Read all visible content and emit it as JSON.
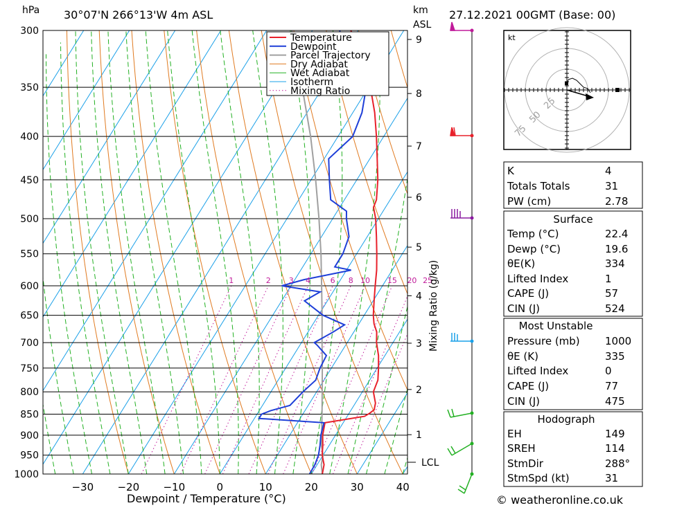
{
  "header": {
    "pressure_unit": "hPa",
    "location": "30°07'N  266°13'W  4m  ASL",
    "height_unit_km": "km",
    "height_unit_asl": "ASL",
    "datetime": "27.12.2021  00GMT  (Base: 00)"
  },
  "footer": {
    "x_axis_title": "Dewpoint / Temperature (°C)",
    "mixing_ratio_axis_title": "Mixing Ratio (g/kg)",
    "lcl_label": "LCL",
    "copyright": "© weatheronline.co.uk"
  },
  "colors": {
    "temperature": "#e8202a",
    "dewpoint": "#1e3fd8",
    "parcel": "#a0a0a0",
    "dry_adiabat": "#e07a20",
    "wet_adiabat": "#22b022",
    "isotherm": "#1aa0e8",
    "mixing_ratio": "#c01a9a"
  },
  "chart_data": {
    "type": "line",
    "title": "",
    "xlabel": "Dewpoint / Temperature (°C)",
    "ylabel": "hPa",
    "xlim": [
      -40,
      40
    ],
    "ylim": [
      1000,
      300
    ],
    "x_ticks": [
      "−30",
      "−20",
      "−10",
      "0",
      "10",
      "20",
      "30",
      "40"
    ],
    "pressure_levels": [
      "300",
      "350",
      "400",
      "450",
      "500",
      "550",
      "600",
      "650",
      "700",
      "750",
      "800",
      "850",
      "900",
      "950",
      "1000"
    ],
    "height_ticks_km": [
      "1",
      "2",
      "3",
      "4",
      "5",
      "6",
      "7",
      "8",
      "9"
    ],
    "mixing_ratio_labels": [
      "1",
      "2",
      "3",
      "4",
      "6",
      "8",
      "10",
      "15",
      "20",
      "25"
    ],
    "legend": {
      "placement": "top",
      "entries": [
        "Temperature",
        "Dewpoint",
        "Parcel Trajectory",
        "Dry Adiabat",
        "Wet Adiabat",
        "Isotherm",
        "Mixing Ratio"
      ]
    },
    "series": [
      {
        "name": "Temperature",
        "points": [
          [
            1000,
            22.4
          ],
          [
            975,
            21.5
          ],
          [
            950,
            19.8
          ],
          [
            925,
            18.6
          ],
          [
            900,
            17.2
          ],
          [
            870,
            16.0
          ],
          [
            855,
            23.8
          ],
          [
            848,
            24.5
          ],
          [
            840,
            25.0
          ],
          [
            825,
            24.4
          ],
          [
            800,
            22.4
          ],
          [
            775,
            21.8
          ],
          [
            750,
            20.3
          ],
          [
            725,
            18.6
          ],
          [
            700,
            16.4
          ],
          [
            680,
            15.0
          ],
          [
            665,
            13.3
          ],
          [
            650,
            12.0
          ],
          [
            625,
            10.2
          ],
          [
            600,
            8.4
          ],
          [
            575,
            6.6
          ],
          [
            550,
            4.4
          ],
          [
            525,
            2.0
          ],
          [
            500,
            -0.6
          ],
          [
            485,
            -2.6
          ],
          [
            475,
            -3.0
          ],
          [
            450,
            -5.4
          ],
          [
            425,
            -8.4
          ],
          [
            400,
            -11.6
          ],
          [
            375,
            -15.2
          ],
          [
            350,
            -19.6
          ],
          [
            325,
            -25.0
          ],
          [
            310,
            -28.6
          ],
          [
            300,
            -31.6
          ]
        ]
      },
      {
        "name": "Dewpoint",
        "points": [
          [
            1000,
            19.6
          ],
          [
            975,
            19.5
          ],
          [
            950,
            19.0
          ],
          [
            925,
            18.0
          ],
          [
            900,
            16.8
          ],
          [
            870,
            15.8
          ],
          [
            860,
            1.0
          ],
          [
            850,
            1.0
          ],
          [
            842,
            2.5
          ],
          [
            830,
            6.0
          ],
          [
            800,
            7.0
          ],
          [
            775,
            8.2
          ],
          [
            750,
            7.5
          ],
          [
            725,
            7.2
          ],
          [
            705,
            3.8
          ],
          [
            700,
            2.8
          ],
          [
            680,
            5.5
          ],
          [
            667,
            7.0
          ],
          [
            650,
            1.0
          ],
          [
            625,
            -5.0
          ],
          [
            610,
            -2.8
          ],
          [
            600,
            -12.0
          ],
          [
            590,
            -8.0
          ],
          [
            575,
            1.0
          ],
          [
            570,
            -3.0
          ],
          [
            550,
            -3.0
          ],
          [
            525,
            -4.0
          ],
          [
            500,
            -7.0
          ],
          [
            490,
            -8.0
          ],
          [
            475,
            -13.0
          ],
          [
            450,
            -16.0
          ],
          [
            425,
            -19.0
          ],
          [
            400,
            -16.8
          ],
          [
            375,
            -18.0
          ],
          [
            350,
            -20.5
          ],
          [
            335,
            -26.0
          ],
          [
            320,
            -36.0
          ],
          [
            313,
            -24.0
          ],
          [
            310,
            -32.0
          ],
          [
            300,
            -34.0
          ]
        ]
      },
      {
        "name": "Parcel Trajectory",
        "points": [
          [
            1000,
            22.4
          ],
          [
            975,
            20.9
          ],
          [
            950,
            20.0
          ],
          [
            925,
            18.3
          ],
          [
            900,
            17.0
          ],
          [
            875,
            15.6
          ],
          [
            850,
            14.2
          ],
          [
            800,
            11.2
          ],
          [
            750,
            8.0
          ],
          [
            700,
            4.5
          ],
          [
            650,
            0.8
          ],
          [
            600,
            -3.3
          ],
          [
            550,
            -7.8
          ],
          [
            500,
            -13.0
          ],
          [
            450,
            -19.0
          ],
          [
            400,
            -26.0
          ],
          [
            350,
            -34.5
          ],
          [
            300,
            -44.5
          ]
        ]
      }
    ],
    "hodograph": {
      "units": "kt",
      "ring_labels": [
        "25",
        "50",
        "75"
      ]
    },
    "indices": {
      "general": [
        {
          "label": "K",
          "value": "4"
        },
        {
          "label": "Totals Totals",
          "value": "31"
        },
        {
          "label": "PW (cm)",
          "value": "2.78"
        }
      ],
      "surface": {
        "title": "Surface",
        "rows": [
          {
            "label": "Temp (°C)",
            "value": "22.4"
          },
          {
            "label": "Dewp (°C)",
            "value": "19.6"
          },
          {
            "label": "θE(K)",
            "value": "334"
          },
          {
            "label": "Lifted Index",
            "value": "1"
          },
          {
            "label": "CAPE (J)",
            "value": "57"
          },
          {
            "label": "CIN (J)",
            "value": "524"
          }
        ]
      },
      "most_unstable": {
        "title": "Most Unstable",
        "rows": [
          {
            "label": "Pressure (mb)",
            "value": "1000"
          },
          {
            "label": "θE (K)",
            "value": "335"
          },
          {
            "label": "Lifted Index",
            "value": "0"
          },
          {
            "label": "CAPE (J)",
            "value": "77"
          },
          {
            "label": "CIN (J)",
            "value": "475"
          }
        ]
      },
      "hodograph_params": {
        "title": "Hodograph",
        "rows": [
          {
            "label": "EH",
            "value": "149"
          },
          {
            "label": "SREH",
            "value": "114"
          },
          {
            "label": "StmDir",
            "value": "288°"
          },
          {
            "label": "StmSpd (kt)",
            "value": "31"
          }
        ]
      }
    }
  }
}
